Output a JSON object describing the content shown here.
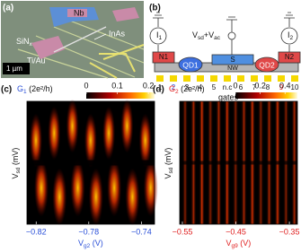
{
  "panel_a": {
    "label": "(a)",
    "nb": "Nb",
    "inas": "InAs",
    "sin": "SiN",
    "sin_sub": "x",
    "tiau": "Ti/Au",
    "scale_bar": "1 µm"
  },
  "panel_b": {
    "label": "(b)",
    "i1": "I",
    "i1_sub": "1",
    "i2": "I",
    "i2_sub": "2",
    "bias": "V",
    "bias_sub": "sd",
    "bias_rest": "+V",
    "bias_sub2": "ac",
    "n1": "N1",
    "qd1": "QD1",
    "s": "S",
    "nw": "NW",
    "qd2": "QD2",
    "n2": "N2",
    "gates": [
      "1",
      "2",
      "3",
      "4",
      "5",
      "n.c",
      "6",
      "7",
      "8",
      "9",
      "10"
    ],
    "gates_label": "gates"
  },
  "plots": [
    {
      "label": "(c)",
      "colorbar": {
        "symbol": "G",
        "subscript": "1",
        "unit": " (2e²/h)",
        "lim": [
          0,
          0.22
        ],
        "ticks": [
          0,
          0.1,
          0.2
        ]
      },
      "x_axis": {
        "symbol": "V",
        "subscript": "g2",
        "unit": " (V)",
        "lim": [
          -0.827,
          -0.73
        ],
        "ticks": [
          {
            "value": -0.82,
            "label": "−0.82"
          },
          {
            "value": -0.78,
            "label": "−0.78"
          },
          {
            "value": -0.74,
            "label": "−0.74"
          }
        ]
      },
      "y_axis": {
        "symbol": "V",
        "subscript": "sd",
        "unit": " (mV)"
      }
    },
    {
      "label": "(d)",
      "colorbar": {
        "symbol": "G",
        "subscript": "2",
        "unit": " (2e²/h)",
        "lim": [
          0,
          0.5
        ],
        "ticks": [
          0,
          0.2,
          0.4
        ]
      },
      "x_axis": {
        "symbol": "V",
        "subscript": "g9",
        "unit": " (V)",
        "lim": [
          -0.555,
          -0.335
        ],
        "ticks": [
          {
            "value": -0.55,
            "label": "−0.55"
          },
          {
            "value": -0.45,
            "label": "−0.45"
          },
          {
            "value": -0.35,
            "label": "−0.35"
          }
        ]
      },
      "y_axis": {
        "symbol": "V",
        "subscript": "sd",
        "unit": " (mV)"
      }
    }
  ]
}
